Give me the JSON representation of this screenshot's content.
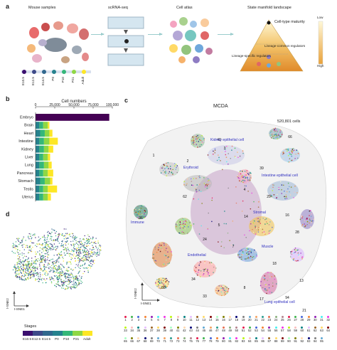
{
  "panel_a": {
    "letter": "a",
    "step_titles": [
      "Mouse samples",
      "scRNA-seq",
      "Cell atlas",
      "State manifold landscape"
    ],
    "stages": [
      "E10.5",
      "E12.5",
      "E14.5",
      "P0",
      "P10",
      "P21",
      "Adult"
    ],
    "landscape_labels": {
      "maturity": "Cell-type maturity",
      "common": "Lineage-common regulators",
      "specific": "Lineage-specific regulators",
      "low": "Low",
      "high": "High"
    }
  },
  "panel_b": {
    "letter": "b"
  },
  "panel_c": {
    "letter": "c",
    "title": "MCDA",
    "cell_count": "520,801 cells",
    "axis_y": "t-SNE2",
    "axis_x": "t-SNE1",
    "annotations": [
      "Kidney epithelial cell",
      "Erythroid",
      "Intestine epithelial cell",
      "Stromal",
      "Immune",
      "Muscle",
      "Endothelial",
      "Lung epithelial cell"
    ],
    "legend_numbers": [
      "1",
      "2",
      "3",
      "4",
      "5",
      "6",
      "7",
      "8",
      "9",
      "10",
      "11",
      "12",
      "13",
      "14",
      "15",
      "16",
      "17",
      "18",
      "19",
      "20",
      "21",
      "22",
      "23",
      "24",
      "25",
      "26",
      "27",
      "28",
      "29",
      "30",
      "31",
      "32",
      "33",
      "34",
      "35",
      "36",
      "37",
      "38",
      "39",
      "40",
      "41",
      "42",
      "43",
      "44",
      "45",
      "46",
      "47",
      "48",
      "49",
      "50",
      "51",
      "52",
      "53",
      "54",
      "55",
      "56",
      "57",
      "58",
      "59",
      "60",
      "61",
      "62",
      "63",
      "64",
      "65",
      "66",
      "67",
      "68",
      "69",
      "70",
      "71",
      "72",
      "73",
      "74",
      "75",
      "76",
      "77",
      "78",
      "79",
      "80",
      "81",
      "82",
      "83",
      "84",
      "85",
      "86",
      "87",
      "88",
      "89",
      "90",
      "91",
      "92",
      "93",
      "94",
      "95"
    ]
  },
  "panel_d": {
    "letter": "d",
    "axis_y": "t-SNE2",
    "axis_x": "t-SNE1",
    "legend_title": "Stages",
    "legend_labels": [
      "E10.5",
      "E12.5",
      "E14.5",
      "P0",
      "P10",
      "P21",
      "Adult"
    ]
  },
  "colors": {
    "stage_colors": [
      "#3b0f6f",
      "#3e4a89",
      "#31688e",
      "#26828e",
      "#35b779",
      "#8fd744",
      "#fde725"
    ],
    "embryo_bar": "#440154",
    "annotation_text": "#3030c0"
  },
  "chart_data": {
    "type": "bar",
    "orientation": "horizontal",
    "stacked": true,
    "title": "Cell numbers",
    "xlim": [
      0,
      100000
    ],
    "xticks": [
      "0",
      "25,000",
      "50,000",
      "75,000",
      "100,000"
    ],
    "categories": [
      "Embryo",
      "Brain",
      "Heart",
      "Intestine",
      "Kidney",
      "Liver",
      "Lung",
      "Pancreas",
      "Stomach",
      "Testis",
      "Uterus"
    ],
    "series": [
      {
        "name": "E10.5",
        "values": [
          96000,
          0,
          0,
          0,
          0,
          0,
          0,
          0,
          0,
          0,
          0
        ]
      },
      {
        "name": "P0",
        "values": [
          0,
          5000,
          6000,
          5000,
          5000,
          5000,
          5000,
          5000,
          6000,
          5000,
          5000
        ]
      },
      {
        "name": "P10",
        "values": [
          0,
          5000,
          6000,
          6000,
          6000,
          5000,
          6000,
          5000,
          6000,
          5000,
          5000
        ]
      },
      {
        "name": "P21",
        "values": [
          0,
          6000,
          6000,
          7000,
          6000,
          6000,
          6000,
          6000,
          7000,
          6000,
          6000
        ]
      },
      {
        "name": "Adult",
        "values": [
          0,
          2000,
          4000,
          11000,
          6000,
          3000,
          4000,
          7000,
          3000,
          12000,
          4000
        ]
      }
    ]
  }
}
